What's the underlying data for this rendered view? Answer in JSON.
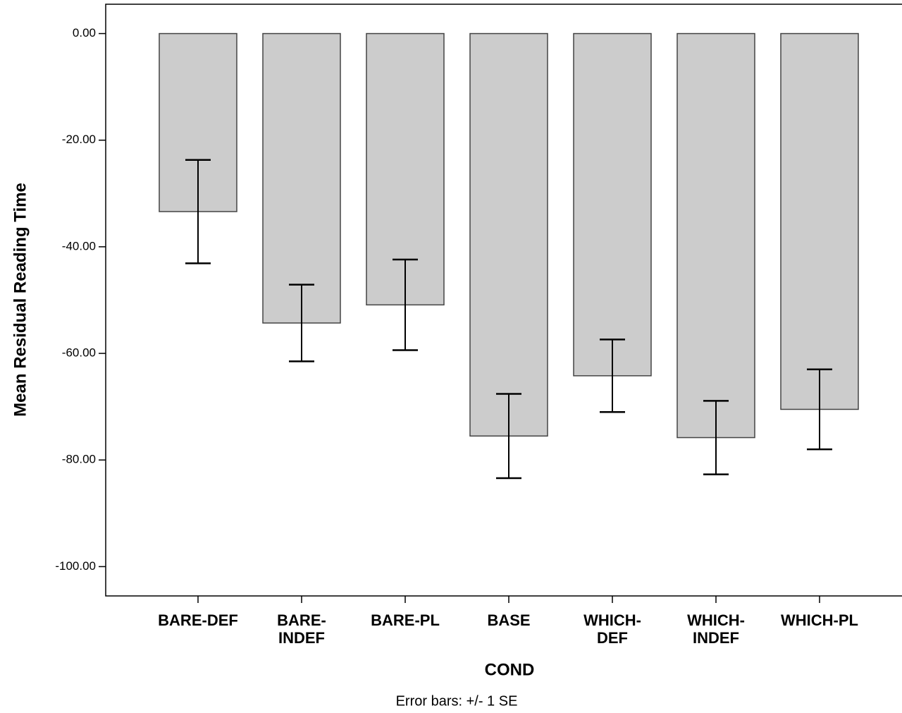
{
  "chart_data": {
    "type": "bar",
    "y_label": "Mean Residual Reading Time",
    "x_label": "COND",
    "note": "Error bars: +/- 1 SE",
    "categories": [
      "BARE-DEF",
      "BARE-INDEF",
      "BARE-PL",
      "BASE",
      "WHICH-DEF",
      "WHICH-INDEF",
      "WHICH-PL"
    ],
    "values": [
      -33.4,
      -54.3,
      -50.9,
      -75.5,
      -64.2,
      -75.8,
      -70.5
    ],
    "errors": [
      9.7,
      7.2,
      8.5,
      7.9,
      6.8,
      6.9,
      7.5
    ],
    "color": "#cccccc",
    "ylim": [
      -105.5,
      5.5
    ],
    "yticks": [
      {
        "value": 0,
        "label": "0.00"
      },
      {
        "value": -20,
        "label": "-20.00"
      },
      {
        "value": -40,
        "label": "-40.00"
      },
      {
        "value": -60,
        "label": "-60.00"
      },
      {
        "value": -80,
        "label": "-80.00"
      },
      {
        "value": -100,
        "label": "-100.00"
      }
    ],
    "grid": false
  }
}
